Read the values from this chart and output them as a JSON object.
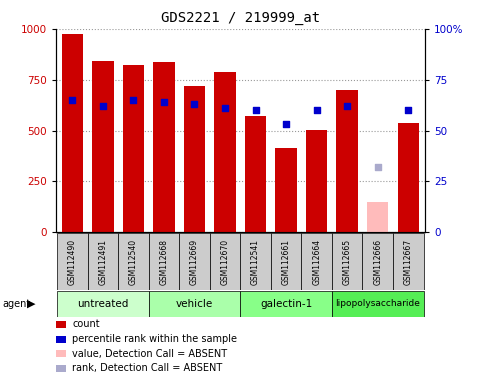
{
  "title": "GDS2221 / 219999_at",
  "samples": [
    "GSM112490",
    "GSM112491",
    "GSM112540",
    "GSM112668",
    "GSM112669",
    "GSM112670",
    "GSM112541",
    "GSM112661",
    "GSM112664",
    "GSM112665",
    "GSM112666",
    "GSM112667"
  ],
  "bar_heights": [
    975,
    840,
    820,
    835,
    720,
    790,
    570,
    415,
    505,
    700,
    150,
    535
  ],
  "bar_colors": [
    "#cc0000",
    "#cc0000",
    "#cc0000",
    "#cc0000",
    "#cc0000",
    "#cc0000",
    "#cc0000",
    "#cc0000",
    "#cc0000",
    "#cc0000",
    "#ffbbbb",
    "#cc0000"
  ],
  "rank_values": [
    65,
    62,
    65,
    64,
    63,
    61,
    60,
    53,
    60,
    62,
    32,
    60
  ],
  "rank_absent": [
    false,
    false,
    false,
    false,
    false,
    false,
    false,
    false,
    false,
    false,
    true,
    false
  ],
  "rank_color_normal": "#0000cc",
  "rank_color_absent": "#aaaacc",
  "ylim_left": [
    0,
    1000
  ],
  "ylim_right": [
    0,
    100
  ],
  "yticks_left": [
    0,
    250,
    500,
    750,
    1000
  ],
  "yticks_right": [
    0,
    25,
    50,
    75,
    100
  ],
  "ylabel_left_color": "#cc0000",
  "ylabel_right_color": "#0000cc",
  "grid_color": "#999999",
  "background_label": "#cccccc",
  "groups": [
    {
      "label": "untreated",
      "start": 0,
      "end": 2,
      "color": "#ccffcc"
    },
    {
      "label": "vehicle",
      "start": 3,
      "end": 5,
      "color": "#aaffaa"
    },
    {
      "label": "galectin-1",
      "start": 6,
      "end": 8,
      "color": "#88ff88"
    },
    {
      "label": "lipopolysaccharide",
      "start": 9,
      "end": 11,
      "color": "#55ee55"
    }
  ],
  "legend_items": [
    {
      "color": "#cc0000",
      "label": "count"
    },
    {
      "color": "#0000cc",
      "label": "percentile rank within the sample"
    },
    {
      "color": "#ffbbbb",
      "label": "value, Detection Call = ABSENT"
    },
    {
      "color": "#aaaacc",
      "label": "rank, Detection Call = ABSENT"
    }
  ]
}
